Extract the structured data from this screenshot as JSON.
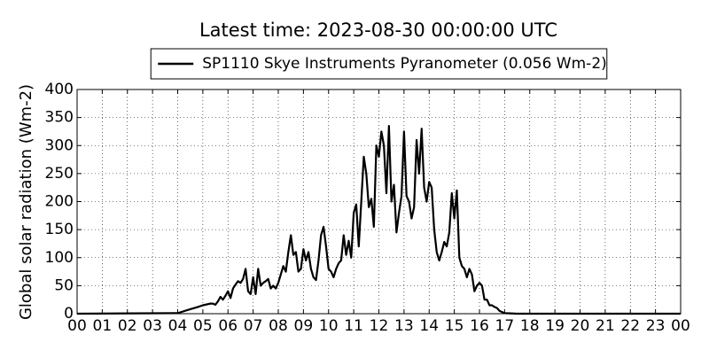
{
  "chart_data": {
    "type": "line",
    "title": "Latest time: 2023-08-30 00:00:00 UTC",
    "ylabel": "Global solar radiation (Wm-2)",
    "legend": "top-center",
    "grid": true,
    "xlim": [
      0,
      24
    ],
    "ylim": [
      0,
      400
    ],
    "yticks": [
      0,
      50,
      100,
      150,
      200,
      250,
      300,
      350,
      400
    ],
    "xticks": [
      {
        "value": 0,
        "label": "00"
      },
      {
        "value": 1,
        "label": "01"
      },
      {
        "value": 2,
        "label": "02"
      },
      {
        "value": 3,
        "label": "03"
      },
      {
        "value": 4,
        "label": "04"
      },
      {
        "value": 5,
        "label": "05"
      },
      {
        "value": 6,
        "label": "06"
      },
      {
        "value": 7,
        "label": "07"
      },
      {
        "value": 8,
        "label": "08"
      },
      {
        "value": 9,
        "label": "09"
      },
      {
        "value": 10,
        "label": "10"
      },
      {
        "value": 11,
        "label": "11"
      },
      {
        "value": 12,
        "label": "12"
      },
      {
        "value": 13,
        "label": "13"
      },
      {
        "value": 14,
        "label": "14"
      },
      {
        "value": 15,
        "label": "15"
      },
      {
        "value": 16,
        "label": "16"
      },
      {
        "value": 17,
        "label": "17"
      },
      {
        "value": 18,
        "label": "18"
      },
      {
        "value": 19,
        "label": "19"
      },
      {
        "value": 20,
        "label": "20"
      },
      {
        "value": 21,
        "label": "21"
      },
      {
        "value": 22,
        "label": "22"
      },
      {
        "value": 23,
        "label": "23"
      },
      {
        "value": 24,
        "label": "00"
      }
    ],
    "x": [
      0,
      4,
      4.5,
      4.8,
      5.0,
      5.1,
      5.2,
      5.3,
      5.4,
      5.5,
      5.6,
      5.7,
      5.8,
      5.9,
      6.0,
      6.1,
      6.2,
      6.3,
      6.4,
      6.5,
      6.6,
      6.7,
      6.8,
      6.9,
      7.0,
      7.1,
      7.2,
      7.3,
      7.4,
      7.5,
      7.6,
      7.7,
      7.8,
      7.9,
      8.0,
      8.1,
      8.2,
      8.3,
      8.4,
      8.5,
      8.6,
      8.7,
      8.8,
      8.9,
      9.0,
      9.1,
      9.2,
      9.3,
      9.4,
      9.5,
      9.6,
      9.7,
      9.8,
      9.9,
      10.0,
      10.1,
      10.2,
      10.3,
      10.4,
      10.5,
      10.6,
      10.7,
      10.8,
      10.9,
      11.0,
      11.1,
      11.2,
      11.3,
      11.4,
      11.5,
      11.6,
      11.7,
      11.8,
      11.9,
      12.0,
      12.1,
      12.2,
      12.3,
      12.4,
      12.5,
      12.6,
      12.7,
      12.8,
      12.9,
      13.0,
      13.1,
      13.2,
      13.3,
      13.4,
      13.5,
      13.6,
      13.7,
      13.8,
      13.9,
      14.0,
      14.1,
      14.2,
      14.3,
      14.4,
      14.5,
      14.6,
      14.7,
      14.8,
      14.9,
      15.0,
      15.1,
      15.2,
      15.3,
      15.4,
      15.5,
      15.6,
      15.7,
      15.8,
      15.9,
      16.0,
      16.1,
      16.2,
      16.3,
      16.4,
      16.5,
      16.6,
      16.7,
      16.8,
      16.9,
      17.0,
      17.5,
      24
    ],
    "series": [
      {
        "name": "SP1110 Skye Instruments Pyranometer (0.056 Wm-2)",
        "color": "#000000",
        "values": [
          0,
          1,
          8,
          12,
          15,
          16,
          17,
          18,
          18,
          16,
          22,
          30,
          25,
          32,
          40,
          28,
          45,
          52,
          58,
          55,
          62,
          80,
          40,
          35,
          65,
          35,
          80,
          50,
          55,
          58,
          62,
          45,
          50,
          45,
          55,
          70,
          85,
          75,
          110,
          140,
          105,
          110,
          75,
          80,
          115,
          95,
          110,
          80,
          65,
          60,
          95,
          140,
          155,
          120,
          80,
          75,
          65,
          80,
          90,
          95,
          140,
          105,
          130,
          100,
          180,
          195,
          120,
          200,
          280,
          250,
          190,
          205,
          155,
          300,
          280,
          325,
          300,
          215,
          335,
          200,
          230,
          145,
          180,
          210,
          325,
          210,
          200,
          170,
          190,
          310,
          250,
          330,
          225,
          200,
          235,
          225,
          150,
          110,
          95,
          110,
          128,
          120,
          145,
          215,
          170,
          220,
          100,
          85,
          80,
          65,
          80,
          70,
          40,
          50,
          55,
          50,
          25,
          25,
          15,
          15,
          12,
          10,
          5,
          3,
          1,
          0,
          0
        ]
      }
    ]
  }
}
